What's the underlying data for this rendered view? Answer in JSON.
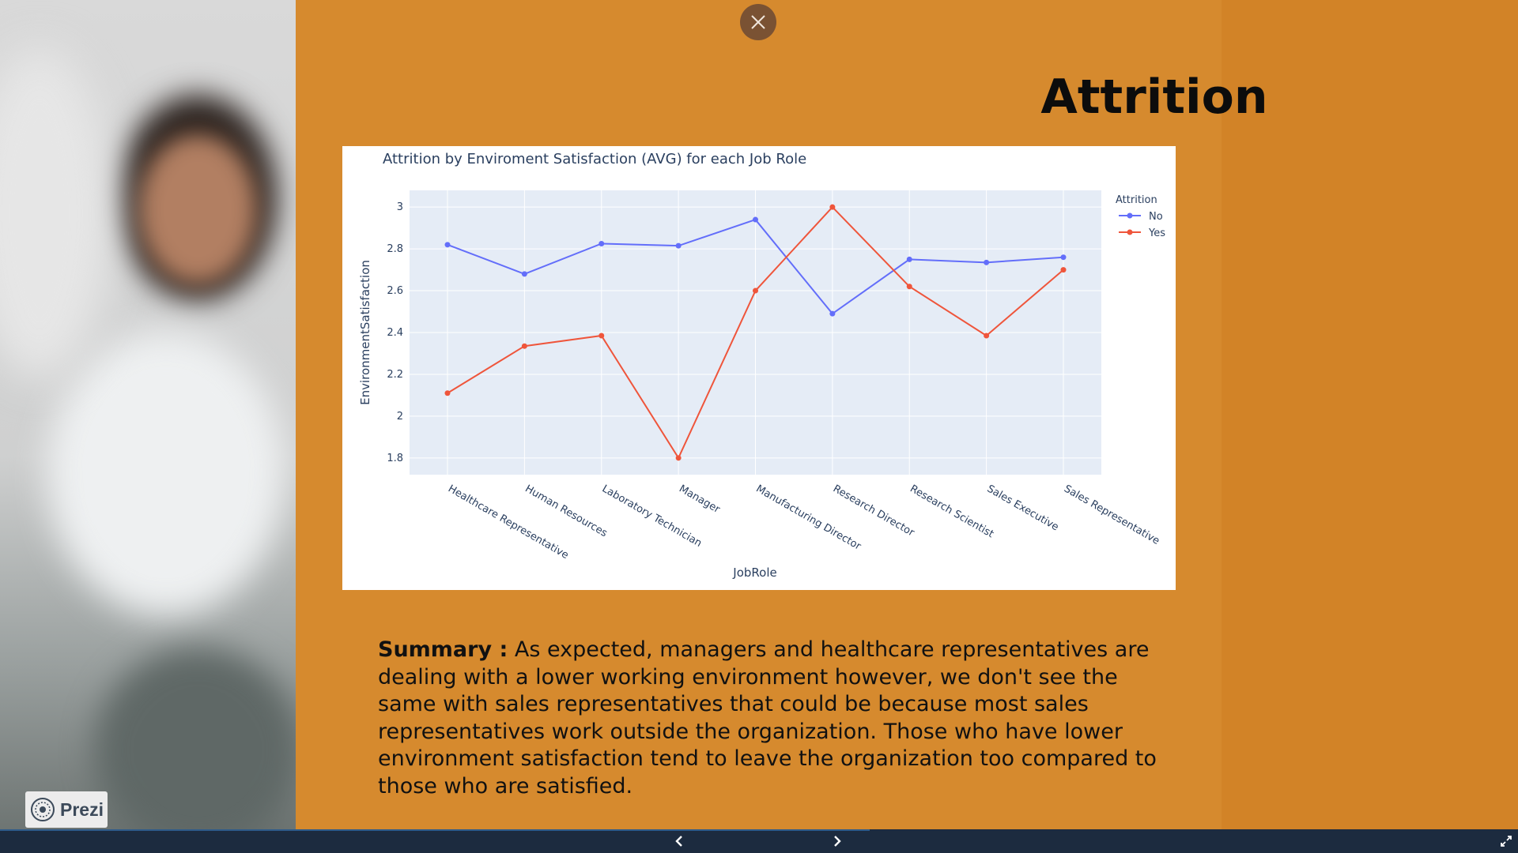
{
  "slide": {
    "title": "Attrition",
    "summary_label": "Summary :",
    "summary_text": "As expected, managers and healthcare representatives are dealing with a lower working environment however, we don't see the same with sales representatives that could be because most sales representatives work outside the organization. Those who have lower environment satisfaction tend to leave the organization too compared to those who are satisfied."
  },
  "branding": {
    "prezi_label": "Prezi"
  },
  "icons": {
    "close": "close-icon",
    "prev": "chevron-left-icon",
    "next": "chevron-right-icon",
    "fullscreen": "fullscreen-icon",
    "logo": "prezi-logo-icon"
  },
  "chart_data": {
    "type": "line",
    "title": "Attrition by Enviroment Satisfaction (AVG) for each Job Role",
    "xlabel": "JobRole",
    "ylabel": "EnvironmentSatisfaction",
    "ylim": [
      1.72,
      3.08
    ],
    "yticks": [
      1.8,
      2,
      2.2,
      2.4,
      2.6,
      2.8,
      3
    ],
    "grid": true,
    "legend_title": "Attrition",
    "legend_position": "top-right",
    "categories": [
      "Healthcare Representative",
      "Human Resources",
      "Laboratory Technician",
      "Manager",
      "Manufacturing Director",
      "Research Director",
      "Research Scientist",
      "Sales Executive",
      "Sales Representative"
    ],
    "series": [
      {
        "name": "No",
        "color": "#636efa",
        "values": [
          2.82,
          2.68,
          2.825,
          2.815,
          2.94,
          2.49,
          2.75,
          2.735,
          2.76
        ]
      },
      {
        "name": "Yes",
        "color": "#ef553b",
        "values": [
          2.11,
          2.335,
          2.385,
          1.8,
          2.6,
          3.0,
          2.62,
          2.385,
          2.7
        ]
      }
    ]
  },
  "colors": {
    "slide_background": "#d68a2e",
    "plot_background": "#e5ecf6",
    "bottom_bar": "#1c2b3f"
  }
}
